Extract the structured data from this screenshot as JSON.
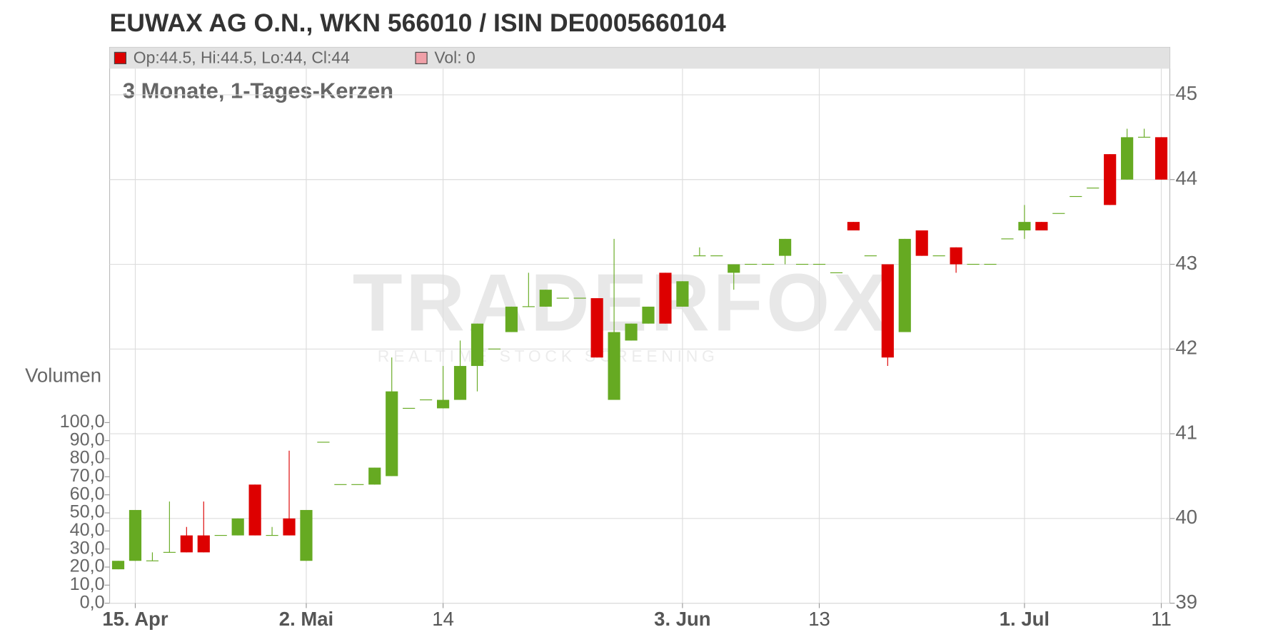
{
  "chart_data": {
    "type": "candlestick",
    "title": "EUWAX AG O.N., WKN 566010 / ISIN DE0005660104",
    "subtitle": "3 Monate, 1-Tages-Kerzen",
    "legend": [
      "Op:44.5, Hi:44.5, Lo:44, Cl:44",
      "Vol: 0"
    ],
    "legend_colors": [
      "#dd0000",
      "#f0a0a8"
    ],
    "y2_label": "Volumen",
    "watermark": "TRADERFOX",
    "watermark_tagline": "REALTIME STOCK SCREENING",
    "up_color": "#66aa22",
    "down_color": "#dd0000",
    "grid": true,
    "categories": [
      null,
      "15. Apr",
      null,
      null,
      null,
      null,
      null,
      null,
      null,
      null,
      null,
      "2. Mai",
      null,
      null,
      null,
      null,
      null,
      null,
      null,
      "14",
      null,
      null,
      null,
      null,
      null,
      null,
      null,
      null,
      null,
      null,
      null,
      null,
      null,
      "3. Jun",
      null,
      null,
      null,
      null,
      null,
      null,
      null,
      "13",
      null,
      null,
      null,
      null,
      null,
      null,
      null,
      null,
      null,
      null,
      null,
      "1. Jul",
      null,
      null,
      null,
      null,
      null,
      null,
      null,
      "11"
    ],
    "open": [
      39.4,
      39.5,
      39.5,
      39.6,
      39.8,
      39.8,
      39.8,
      39.8,
      40.4,
      39.8,
      40.0,
      39.5,
      40.9,
      40.4,
      40.4,
      40.4,
      40.5,
      41.3,
      41.4,
      41.3,
      41.4,
      41.8,
      42.0,
      42.2,
      42.5,
      42.5,
      42.6,
      42.6,
      42.6,
      41.4,
      42.1,
      42.3,
      42.9,
      42.5,
      43.1,
      43.1,
      42.9,
      43.0,
      43.0,
      43.1,
      43.0,
      43.0,
      42.9,
      43.5,
      43.1,
      43.0,
      42.2,
      43.4,
      43.1,
      43.2,
      43.0,
      43.0,
      43.3,
      43.4,
      43.5,
      43.6,
      43.8,
      43.9,
      44.3,
      44.0,
      44.5,
      44.5
    ],
    "high": [
      39.5,
      40.1,
      39.6,
      40.2,
      39.9,
      40.2,
      39.8,
      40.0,
      40.4,
      39.9,
      40.8,
      40.1,
      40.9,
      40.4,
      40.4,
      40.6,
      41.9,
      41.3,
      41.4,
      41.8,
      42.1,
      42.3,
      42.0,
      42.5,
      42.9,
      42.7,
      42.6,
      42.6,
      42.6,
      43.3,
      42.3,
      42.5,
      42.9,
      42.8,
      43.2,
      43.1,
      43.0,
      43.0,
      43.0,
      43.3,
      43.0,
      43.0,
      42.9,
      43.5,
      43.1,
      43.0,
      43.3,
      43.4,
      43.1,
      43.2,
      43.0,
      43.0,
      43.3,
      43.7,
      43.5,
      43.6,
      43.8,
      43.9,
      44.3,
      44.6,
      44.6,
      44.5
    ],
    "low": [
      39.4,
      39.5,
      39.5,
      39.6,
      39.6,
      39.6,
      39.8,
      39.8,
      39.8,
      39.8,
      39.8,
      39.5,
      40.9,
      40.4,
      40.4,
      40.4,
      40.5,
      41.3,
      41.4,
      41.3,
      41.4,
      41.5,
      42.0,
      42.2,
      42.5,
      42.5,
      42.6,
      42.6,
      41.9,
      41.4,
      42.1,
      42.3,
      42.3,
      42.5,
      43.1,
      43.1,
      42.7,
      43.0,
      43.0,
      43.0,
      43.0,
      43.0,
      42.9,
      43.4,
      43.1,
      41.8,
      42.2,
      43.1,
      43.1,
      42.9,
      43.0,
      43.0,
      43.3,
      43.3,
      43.4,
      43.6,
      43.8,
      43.9,
      43.7,
      44.0,
      44.5,
      44.0
    ],
    "close": [
      39.5,
      40.1,
      39.5,
      39.6,
      39.6,
      39.6,
      39.8,
      40.0,
      39.8,
      39.8,
      39.8,
      40.1,
      40.9,
      40.4,
      40.4,
      40.6,
      41.5,
      41.3,
      41.4,
      41.4,
      41.8,
      42.3,
      42.0,
      42.5,
      42.5,
      42.7,
      42.6,
      42.6,
      41.9,
      42.2,
      42.3,
      42.5,
      42.3,
      42.8,
      43.1,
      43.1,
      43.0,
      43.0,
      43.0,
      43.3,
      43.0,
      43.0,
      42.9,
      43.4,
      43.1,
      41.9,
      43.3,
      43.1,
      43.1,
      43.0,
      43.0,
      43.0,
      43.3,
      43.5,
      43.4,
      43.6,
      43.8,
      43.9,
      43.7,
      44.5,
      44.5,
      44.0
    ],
    "ylim": [
      39,
      45.56
    ],
    "yticks": [
      39,
      40,
      41,
      42,
      43,
      44,
      45
    ],
    "y2lim": [
      0,
      307.7
    ],
    "y2ticks": [
      {
        "value": 0,
        "label": "0,0"
      },
      {
        "value": 10,
        "label": "10,0"
      },
      {
        "value": 20,
        "label": "20,0"
      },
      {
        "value": 30,
        "label": "30,0"
      },
      {
        "value": 40,
        "label": "40,0"
      },
      {
        "value": 50,
        "label": "50,0"
      },
      {
        "value": 60,
        "label": "60,0"
      },
      {
        "value": 70,
        "label": "70,0"
      },
      {
        "value": 80,
        "label": "80,0"
      },
      {
        "value": 90,
        "label": "90,0"
      },
      {
        "value": 100,
        "label": "100,0"
      }
    ]
  }
}
